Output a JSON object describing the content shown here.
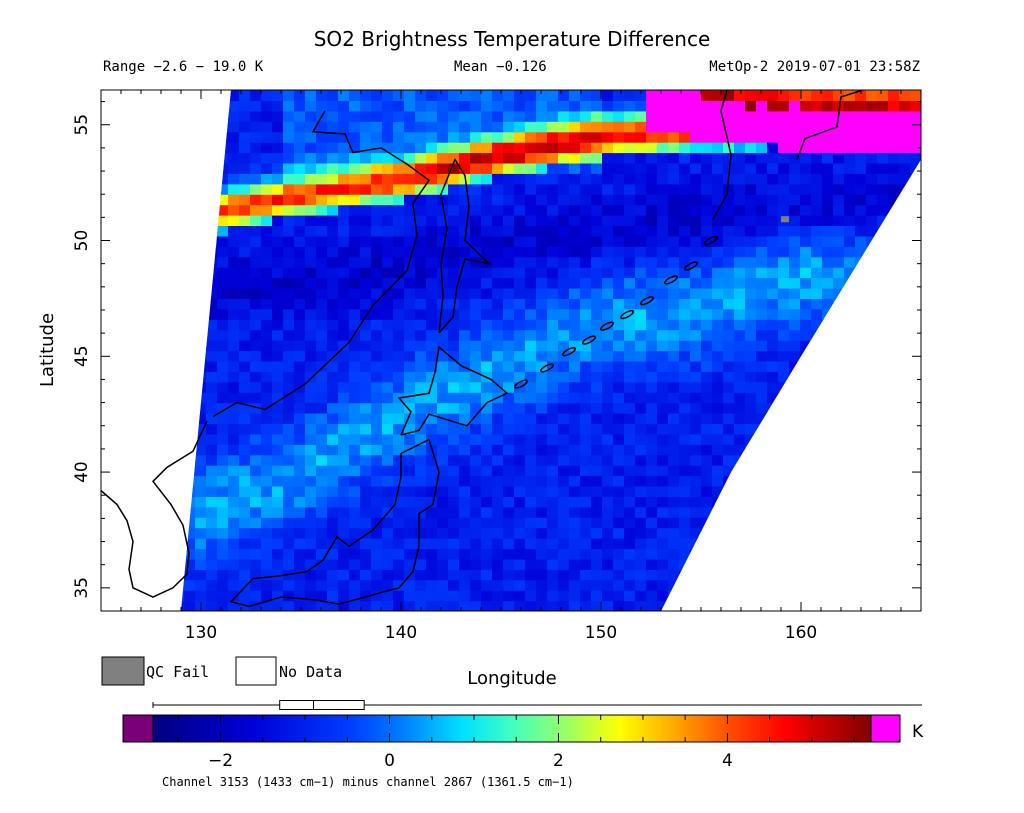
{
  "chart_data": {
    "type": "heatmap",
    "title": "SO2 Brightness Temperature Difference",
    "subtitle_left": "Range −2.6 − 19.0 K",
    "subtitle_center": "Mean −0.126",
    "subtitle_right": "MetOp-2 2019-07-01 23:58Z",
    "xlabel": "Longitude",
    "ylabel": "Latitude",
    "xlim": [
      125,
      166
    ],
    "ylim": [
      34,
      56.5
    ],
    "xticks": [
      130,
      140,
      150,
      160
    ],
    "yticks": [
      35,
      40,
      45,
      50,
      55
    ],
    "range": [
      -2.6,
      19.0
    ],
    "mean": -0.126,
    "units": "K",
    "colorbar": {
      "min": -2.8,
      "max": 5.7,
      "ticks": [
        -2,
        0,
        2,
        4
      ],
      "tick_labels": [
        "−2",
        "0",
        "2",
        "4"
      ],
      "under_color": "#7a007a",
      "over_color": "#ff00ff",
      "boxplot": {
        "whisker_low": -2.8,
        "q1": -1.3,
        "median": -0.9,
        "q3": -0.3,
        "whisker_high": 5.7
      }
    },
    "swath": {
      "west_edge": [
        [
          131.5,
          56.5
        ],
        [
          129.0,
          34.0
        ]
      ],
      "east_edge": [
        [
          166.0,
          53.5
        ],
        [
          160.0,
          45.0
        ],
        [
          156.5,
          40.0
        ],
        [
          153.0,
          34.0
        ]
      ]
    },
    "features": [
      {
        "name": "SO2 plume band",
        "path": [
          [
            129.5,
            51.0
          ],
          [
            135.0,
            52.0
          ],
          [
            140.0,
            52.6
          ],
          [
            145.0,
            53.7
          ],
          [
            150.0,
            54.5
          ],
          [
            155.0,
            54.8
          ],
          [
            160.0,
            55.0
          ],
          [
            166.0,
            55.2
          ]
        ],
        "value": 4.5
      },
      {
        "name": "SO2 plume core",
        "path": [
          [
            152.0,
            55.5
          ],
          [
            156.0,
            55.0
          ],
          [
            160.0,
            54.6
          ],
          [
            164.0,
            54.5
          ]
        ],
        "value": 8.0
      },
      {
        "name": "warm diagonal band",
        "path": [
          [
            129.0,
            38.0
          ],
          [
            135.0,
            40.0
          ],
          [
            140.0,
            42.5
          ],
          [
            145.0,
            44.5
          ],
          [
            150.0,
            46.5
          ],
          [
            155.0,
            47.0
          ],
          [
            160.0,
            48.5
          ]
        ],
        "value": 0.4
      },
      {
        "name": "cold band",
        "path": [
          [
            130.0,
            48.0
          ],
          [
            138.0,
            48.5
          ],
          [
            146.0,
            50.0
          ],
          [
            155.0,
            51.0
          ],
          [
            162.0,
            51.5
          ]
        ],
        "value": -1.9
      }
    ],
    "qc_fail_pixels": [
      [
        159.0,
        50.8
      ]
    ]
  },
  "legend": {
    "qc_fail_label": "QC Fail",
    "qc_fail_color": "#808080",
    "no_data_label": "No Data",
    "no_data_color": "#ffffff"
  },
  "colorbar_unit": "K",
  "footnote": "Channel 3153 (1433 cm−1) minus channel 2867 (1361.5 cm−1)"
}
